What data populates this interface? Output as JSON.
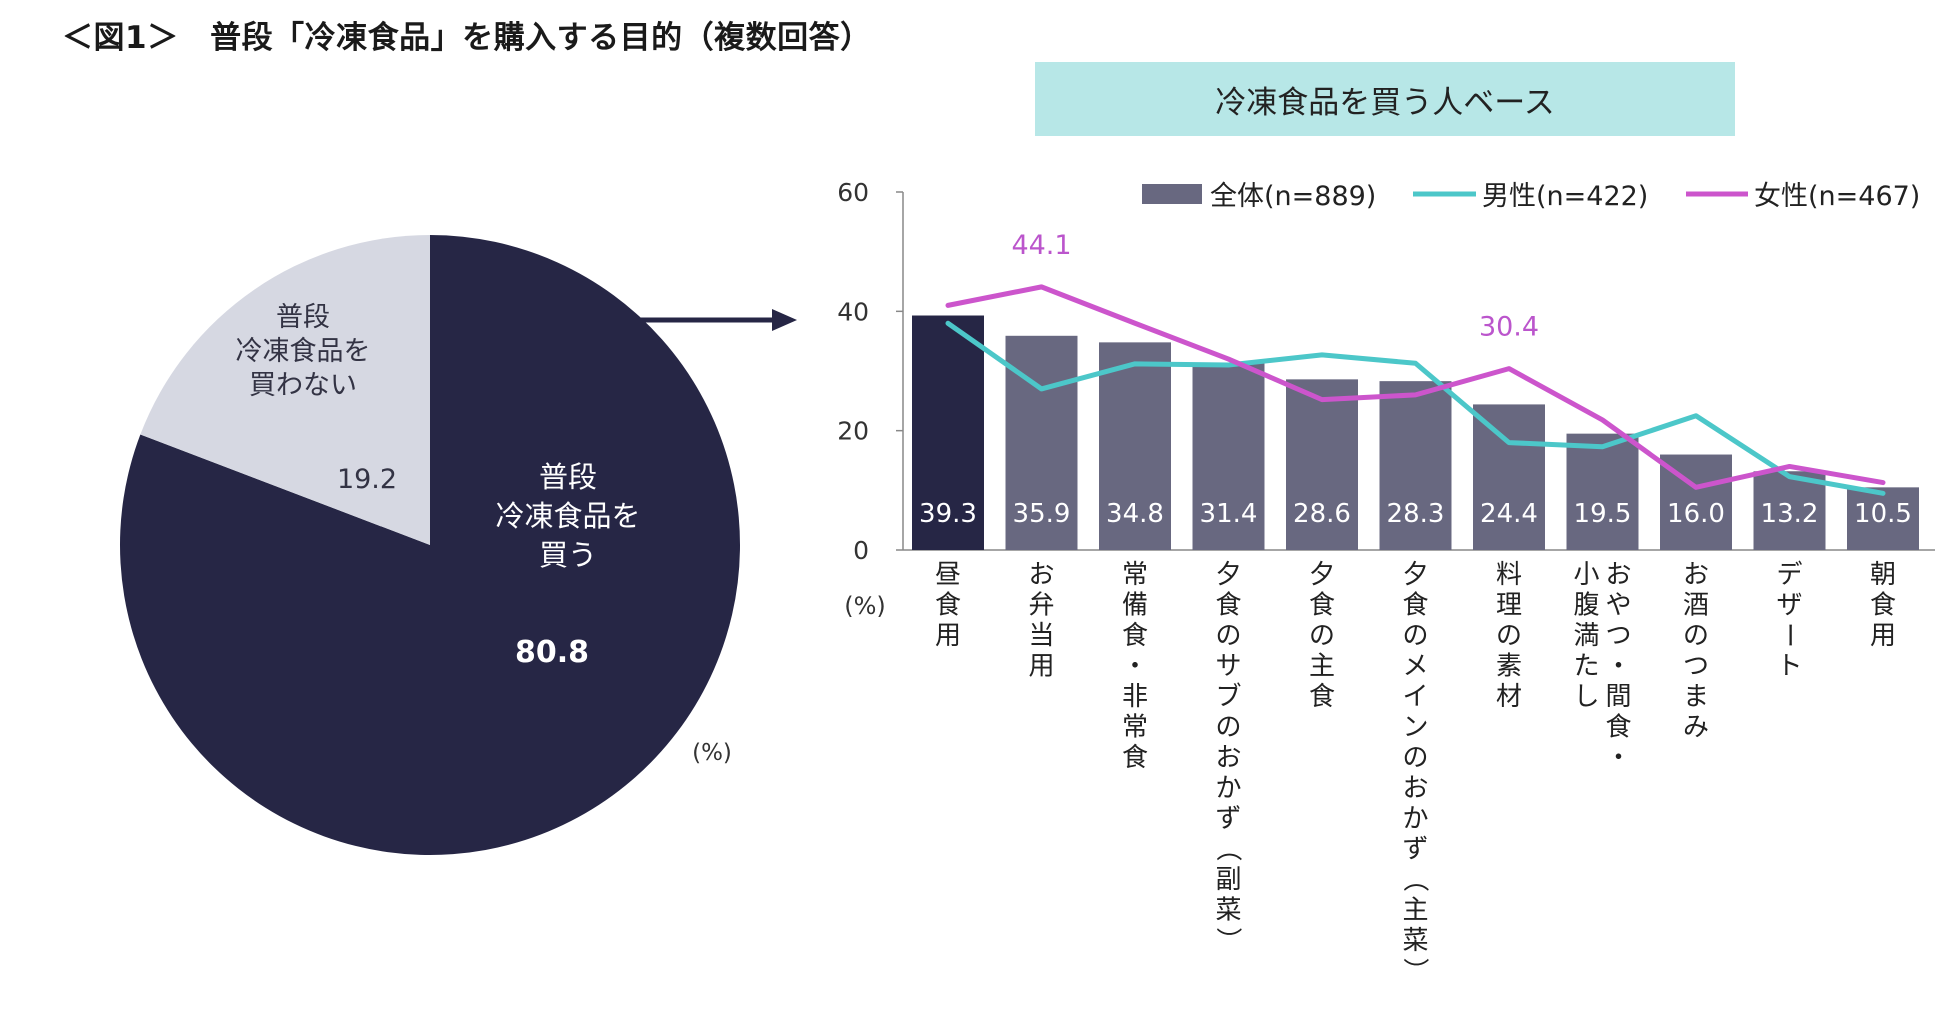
{
  "title": "＜図1＞　普段「冷凍食品」を購入する目的（複数回答）",
  "colors": {
    "pie_main": "#262645",
    "pie_rest": "#d6d8e2",
    "bar_all": "#686880",
    "bar_highlight": "#262645",
    "male_line": "#4cc7c9",
    "female_line": "#cc55cc",
    "banner_bg": "#b7e7e7",
    "female_label": "#bb55cc",
    "axis": "#555555"
  },
  "chart_data": [
    {
      "type": "pie",
      "unit_label": "(%)",
      "slices": [
        {
          "label_lines": [
            "普段",
            "冷凍食品を",
            "買う"
          ],
          "value": 80.8,
          "value_label": "80.8"
        },
        {
          "label_lines": [
            "普段",
            "冷凍食品を",
            "買わない"
          ],
          "value": 19.2,
          "value_label": "19.2"
        }
      ]
    },
    {
      "type": "bar",
      "banner": "冷凍食品を買う人ベース",
      "ylabel": "(%)",
      "ylim": [
        0,
        60
      ],
      "yticks": [
        "0",
        "20",
        "40",
        "60"
      ],
      "ytick_values": [
        0,
        20,
        40,
        60
      ],
      "legend": {
        "all": "全体(n=889)",
        "male": "男性(n=422)",
        "female": "女性(n=467)"
      },
      "categories": [
        "昼食用",
        "お弁当用",
        "常備食・非常食",
        "夕食のサブのおかず（副菜）",
        "夕食の主食",
        "夕食のメインのおかず（主菜）",
        "料理の素材",
        "おやつ・間食・小腹満たし",
        "お酒のつまみ",
        "デザート",
        "朝食用"
      ],
      "category_columns": [
        [
          "昼食用"
        ],
        [
          "お弁当用"
        ],
        [
          "常備食・非常食"
        ],
        [
          "夕食のサブのおかず（副菜）"
        ],
        [
          "夕食の主食"
        ],
        [
          "夕食のメインのおかず（主菜）"
        ],
        [
          "料理の素材"
        ],
        [
          "おやつ・間食・",
          "小腹満たし"
        ],
        [
          "お酒のつまみ"
        ],
        [
          "デザート"
        ],
        [
          "朝食用"
        ]
      ],
      "series": [
        {
          "name": "全体",
          "values": [
            39.3,
            35.9,
            34.8,
            31.4,
            28.6,
            28.3,
            24.4,
            19.5,
            16.0,
            13.2,
            10.5
          ],
          "labels": [
            "39.3",
            "35.9",
            "34.8",
            "31.4",
            "28.6",
            "28.3",
            "24.4",
            "19.5",
            "16.0",
            "13.2",
            "10.5"
          ]
        },
        {
          "name": "男性",
          "values": [
            38.0,
            27.0,
            31.2,
            31.0,
            32.7,
            31.3,
            18.0,
            17.3,
            22.5,
            12.3,
            9.5
          ]
        },
        {
          "name": "女性",
          "values": [
            41.0,
            44.1,
            38.0,
            32.0,
            25.2,
            26.0,
            30.4,
            21.8,
            10.5,
            14.0,
            11.3
          ]
        }
      ],
      "annotations": [
        {
          "category_index": 1,
          "series": "女性",
          "text": "44.1"
        },
        {
          "category_index": 6,
          "series": "女性",
          "text": "30.4"
        }
      ]
    }
  ]
}
